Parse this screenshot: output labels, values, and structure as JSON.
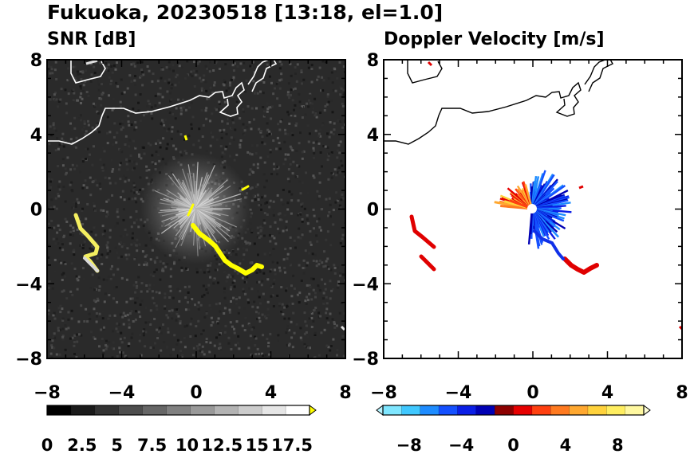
{
  "title": "Fukuoka, 20230518 [13:18, el=1.0]",
  "chart_data": [
    {
      "type": "heatmap",
      "title": "SNR [dB]",
      "xlim": [
        -8,
        8
      ],
      "ylim": [
        -8,
        8
      ],
      "x_ticks": [
        -8,
        -4,
        0,
        4,
        8
      ],
      "y_ticks": [
        8,
        4,
        0,
        -4,
        -8
      ],
      "x_tick_labels": [
        "−8",
        "−4",
        "0",
        "4",
        "8"
      ],
      "y_tick_labels": [
        "8",
        "4",
        "0",
        "−4",
        "−8"
      ],
      "colorbar": {
        "min": 0,
        "max": 18.75,
        "labels": [
          "0",
          "2.5",
          "5",
          "7.5",
          "10",
          "12.5",
          "15",
          "17.5"
        ],
        "extend": "max",
        "colors": [
          "#000000",
          "#1a1a1a",
          "#333333",
          "#4d4d4d",
          "#666666",
          "#808080",
          "#999999",
          "#b3b3b3",
          "#cccccc",
          "#e6e6e6",
          "#ffffff",
          "#ffff00"
        ]
      },
      "background_color": "#2a2a2a"
    },
    {
      "type": "heatmap",
      "title": "Doppler Velocity [m/s]",
      "xlim": [
        -8,
        8
      ],
      "ylim": [
        -8,
        8
      ],
      "x_ticks": [
        -8,
        -4,
        0,
        4,
        8
      ],
      "y_ticks": [
        8,
        4,
        0,
        -4,
        -8
      ],
      "x_tick_labels": [
        "−8",
        "−4",
        "0",
        "4",
        "8"
      ],
      "y_tick_labels": [
        "8",
        "4",
        "0",
        "−4",
        "−8"
      ],
      "colorbar": {
        "min": -10,
        "max": 10,
        "labels": [
          "−8",
          "−4",
          "0",
          "4",
          "8"
        ],
        "extend": "both",
        "colors": [
          "#b8f4ff",
          "#7fe6ff",
          "#40c8ff",
          "#1e8cff",
          "#1450ff",
          "#0a1ee6",
          "#0000b4",
          "#8c0000",
          "#e60000",
          "#ff4010",
          "#ff7a20",
          "#ffa830",
          "#ffd23c",
          "#ffee60",
          "#fff8a0",
          "#ffffd8"
        ]
      },
      "background_color": "#ffffff"
    }
  ]
}
